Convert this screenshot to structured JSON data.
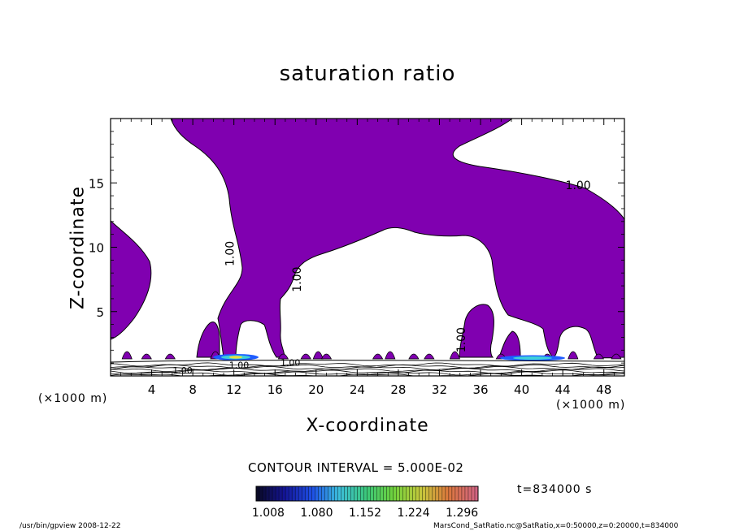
{
  "chart_data": {
    "type": "contour",
    "title": "saturation ratio",
    "xlabel": "X-coordinate",
    "ylabel": "Z-coordinate",
    "x_unit": "(×1000 m)",
    "x_unit_right": "(×1000 m)",
    "xlim": [
      0,
      50
    ],
    "ylim": [
      0,
      20
    ],
    "x_ticks": [
      "4",
      "8",
      "12",
      "16",
      "20",
      "24",
      "28",
      "32",
      "36",
      "40",
      "44",
      "48"
    ],
    "x_tick_values": [
      4,
      8,
      12,
      16,
      20,
      24,
      28,
      32,
      36,
      40,
      44,
      48
    ],
    "y_ticks": [
      "5",
      "10",
      "15"
    ],
    "y_tick_values": [
      5,
      10,
      15
    ],
    "contour_labels": [
      {
        "text": "1.00",
        "x": 45.5,
        "z": 14.5
      },
      {
        "text": "1.00",
        "x": 12.0,
        "z": 9.5
      },
      {
        "text": "1.00",
        "x": 18.5,
        "z": 7.5
      },
      {
        "text": "1.00",
        "x": 34.5,
        "z": 2.8
      },
      {
        "text": "1.00",
        "x": 7.0,
        "z": 0.2
      },
      {
        "text": "1.00",
        "x": 12.5,
        "z": 0.6
      },
      {
        "text": "1.00",
        "x": 17.5,
        "z": 0.8
      }
    ],
    "contour_interval": "CONTOUR INTERVAL = 5.000E-02",
    "colorbar_ticks": [
      "1.008",
      "1.080",
      "1.152",
      "1.224",
      "1.296"
    ],
    "colorbar_range": [
      0.99,
      1.32
    ],
    "time": "t=834000 s",
    "colors": {
      "fill": "#8000b0",
      "line": "#000000"
    }
  },
  "footer": {
    "left": "/usr/bin/gpview   2008-12-22",
    "right": "MarsCond_SatRatio.nc@SatRatio,x=0:50000,z=0:20000,t=834000"
  }
}
